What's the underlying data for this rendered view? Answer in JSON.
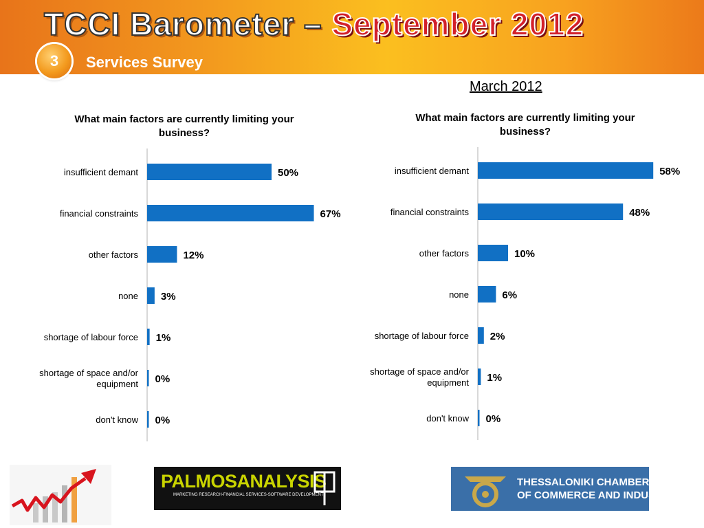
{
  "header": {
    "title_main": "TCCI Barometer – ",
    "title_highlight": "September 2012",
    "section_number": "3",
    "section_title": "Services Survey"
  },
  "right_period_label": "March 2012",
  "chart_data": [
    {
      "type": "bar",
      "orientation": "horizontal",
      "title": "What main factors are currently limiting your business?",
      "categories": [
        "insufficient demant",
        "financial constraints",
        "other factors",
        "none",
        "shortage of labour force",
        "shortage of space and/or equipment",
        "don't know"
      ],
      "values": [
        50,
        67,
        12,
        3,
        1,
        0,
        0
      ],
      "data_labels": [
        "50%",
        "67%",
        "12%",
        "3%",
        "1%",
        "0%",
        "0%"
      ],
      "unit": "%",
      "bar_color": "#1170c4",
      "xlim": [
        0,
        70
      ]
    },
    {
      "type": "bar",
      "orientation": "horizontal",
      "title": "What main factors are currently limiting your business?",
      "categories": [
        "insufficient demant",
        "financial constraints",
        "other factors",
        "none",
        "shortage of labour force",
        "shortage of space and/or equipment",
        "don't know"
      ],
      "values": [
        58,
        48,
        10,
        6,
        2,
        1,
        0
      ],
      "data_labels": [
        "58%",
        "48%",
        "10%",
        "6%",
        "2%",
        "1%",
        "0%"
      ],
      "unit": "%",
      "bar_color": "#1170c4",
      "xlim": [
        0,
        70
      ]
    }
  ],
  "footer": {
    "left_icon": "growth-chart-icon",
    "palmos_name": "PALMOSANALYSIS",
    "palmos_tagline": "MARKETING RESEARCH-FINANCIAL SERVICES-SOFTWARE DEVELOPMENT",
    "chamber_line1": "THESSALONIKI CHAMBER",
    "chamber_line2": "OF COMMERCE AND INDUSTRY"
  }
}
